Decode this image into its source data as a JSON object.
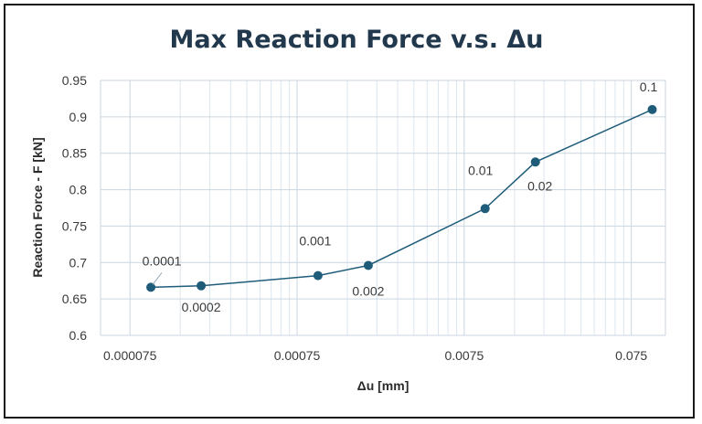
{
  "chart_data": {
    "type": "scatter",
    "title": "Max Reaction Force v.s. Δu",
    "xlabel": "Δu [mm]",
    "ylabel": "Reaction Force - F [kN]",
    "x_scale": "log",
    "xlim": [
      5e-05,
      0.12
    ],
    "ylim": [
      0.6,
      0.95
    ],
    "x_ticks": [
      "0.000075",
      "0.00075",
      "0.0075",
      "0.075"
    ],
    "y_ticks": [
      "0.6",
      "0.65",
      "0.7",
      "0.75",
      "0.8",
      "0.85",
      "0.9",
      "0.95"
    ],
    "grid": true,
    "legend": "none",
    "series": [
      {
        "x": [
          0.0001,
          0.0002,
          0.001,
          0.002,
          0.01,
          0.02,
          0.1
        ],
        "y": [
          0.666,
          0.668,
          0.682,
          0.696,
          0.774,
          0.838,
          0.91
        ],
        "labels": [
          "0.0001",
          "0.0002",
          "0.001",
          "0.002",
          "0.01",
          "0.02",
          "0.1"
        ]
      }
    ],
    "colors": {
      "series": "#1f5c7a",
      "grid": "#dce6ee",
      "title": "#22384d"
    }
  }
}
